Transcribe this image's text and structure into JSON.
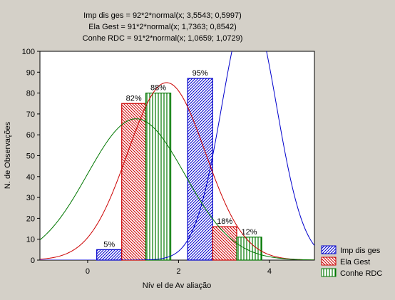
{
  "chart_data": {
    "type": "bar",
    "header_lines": [
      "Imp dis ges = 92*2*normal(x; 3,5543; 0,5997)",
      "Ela Gest = 91*2*normal(x; 1,7363; 0,8542)",
      "Conhe RDC = 91*2*normal(x; 1,0659; 1,0729)"
    ],
    "xlabel": "Nív el de Av aliação",
    "ylabel": "N. de Observações",
    "xlim": [
      -1.05,
      4.99
    ],
    "ylim": [
      0,
      100
    ],
    "x_ticks": [
      0,
      2,
      4
    ],
    "x_tick_labels": [
      "0",
      "2",
      "4"
    ],
    "y_ticks": [
      0,
      10,
      20,
      30,
      40,
      50,
      60,
      70,
      80,
      90,
      100
    ],
    "y_tick_labels": [
      "0",
      "10",
      "20",
      "30",
      "40",
      "50",
      "60",
      "70",
      "80",
      "90",
      "100"
    ],
    "legend_position": "bottom-right outside",
    "series": [
      {
        "name": "Imp dis ges",
        "color": "#0000cc",
        "hatch": "diagonal-right",
        "bars": [
          {
            "x_from": 0.2,
            "x_to": 0.75,
            "value": 5,
            "label": "5%"
          },
          {
            "x_from": 2.2,
            "x_to": 2.75,
            "value": 87,
            "label": "95%"
          }
        ],
        "curve": {
          "n": 92,
          "mean": 3.5543,
          "sd": 0.5997
        }
      },
      {
        "name": "Ela Gest",
        "color": "#cc0000",
        "hatch": "diagonal-left",
        "bars": [
          {
            "x_from": 0.75,
            "x_to": 1.28,
            "value": 75,
            "label": "82%"
          },
          {
            "x_from": 2.75,
            "x_to": 3.28,
            "value": 16,
            "label": "18%"
          }
        ],
        "curve": {
          "n": 91,
          "mean": 1.7363,
          "sd": 0.8542
        }
      },
      {
        "name": "Conhe RDC",
        "color": "#007700",
        "hatch": "vertical",
        "bars": [
          {
            "x_from": 1.28,
            "x_to": 1.83,
            "value": 80,
            "label": "88%"
          },
          {
            "x_from": 3.28,
            "x_to": 3.83,
            "value": 11,
            "label": "12%"
          }
        ],
        "curve": {
          "n": 91,
          "mean": 1.0659,
          "sd": 1.0729
        }
      }
    ]
  }
}
